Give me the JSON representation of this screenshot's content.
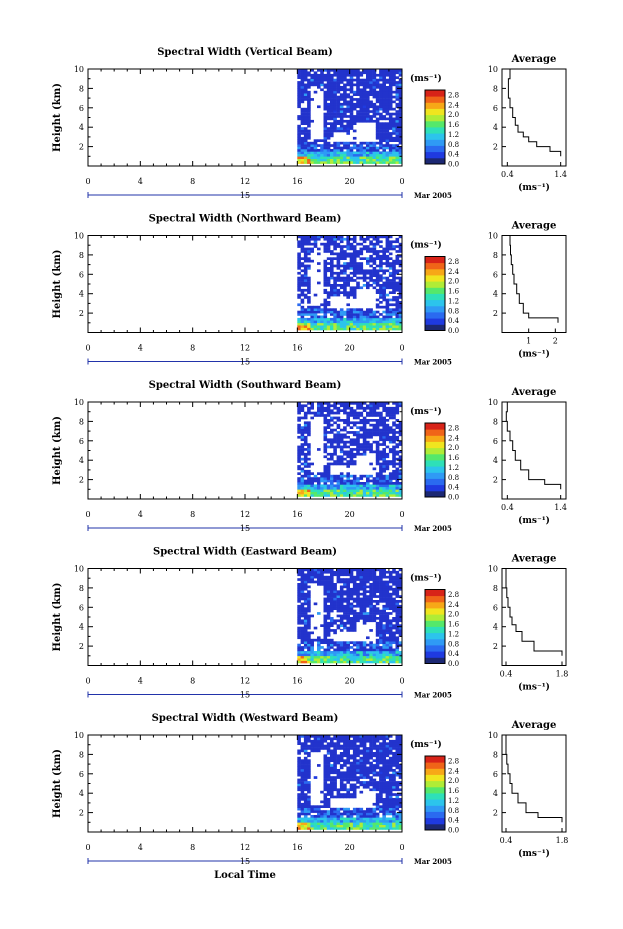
{
  "colors": {
    "background": "#ffffff",
    "axes": "#000000",
    "data_navy": "#2233cc",
    "colormap": [
      "#1c2873",
      "#1f3ae0",
      "#2a6af0",
      "#2f9af5",
      "#2cc4ec",
      "#2ee0b8",
      "#55e86a",
      "#b0ec36",
      "#f0e51f",
      "#f7a817",
      "#f06418",
      "#d82318"
    ]
  },
  "chart_data": [
    {
      "type": "heatmap",
      "title": "Spectral Width (Vertical Beam)",
      "ylabel": "Height (km)",
      "xlim": [
        0,
        24
      ],
      "ylim": [
        0,
        10
      ],
      "xticks": [
        "0",
        "4",
        "8",
        "12",
        "16",
        "20",
        "0"
      ],
      "yticks": [
        "2",
        "4",
        "6",
        "8",
        "10"
      ],
      "day_label": "15",
      "date_label": "Mar 2005",
      "data_time_range": [
        16,
        24
      ],
      "colorbar": {
        "unit": "(ms⁻¹)",
        "range": [
          0,
          3.0
        ],
        "ticks": [
          "2.8",
          "2.4",
          "2.0",
          "1.6",
          "1.2",
          "0.8",
          "0.4",
          "0.0"
        ]
      },
      "average": {
        "title": "Average",
        "xlabel": "(ms⁻¹)",
        "xticks": [
          "0.4",
          "1.4"
        ],
        "xlim": [
          0.3,
          1.5
        ],
        "yticks": [
          "2",
          "4",
          "6",
          "8",
          "10"
        ],
        "profile": [
          [
            0.5,
            10
          ],
          [
            0.45,
            9
          ],
          [
            0.42,
            8
          ],
          [
            0.42,
            7
          ],
          [
            0.45,
            6
          ],
          [
            0.5,
            5
          ],
          [
            0.55,
            4.2
          ],
          [
            0.6,
            3.5
          ],
          [
            0.7,
            3
          ],
          [
            0.8,
            2.5
          ],
          [
            0.95,
            2
          ],
          [
            1.2,
            1.5
          ],
          [
            1.4,
            1
          ]
        ]
      }
    },
    {
      "type": "heatmap",
      "title": "Spectral Width (Northward Beam)",
      "ylabel": "Height (km)",
      "xlim": [
        0,
        24
      ],
      "ylim": [
        0,
        10
      ],
      "xticks": [
        "0",
        "4",
        "8",
        "12",
        "16",
        "20",
        "0"
      ],
      "yticks": [
        "2",
        "4",
        "6",
        "8",
        "10"
      ],
      "day_label": "15",
      "date_label": "Mar 2005",
      "data_time_range": [
        16,
        24
      ],
      "colorbar": {
        "unit": "(ms⁻¹)",
        "range": [
          0,
          3.0
        ],
        "ticks": [
          "2.8",
          "2.4",
          "2.0",
          "1.6",
          "1.2",
          "0.8",
          "0.4",
          "0.0"
        ]
      },
      "average": {
        "title": "Average",
        "xlabel": "(ms⁻¹)",
        "xticks": [
          "1",
          "2"
        ],
        "xlim": [
          0,
          2.4
        ],
        "yticks": [
          "2",
          "4",
          "6",
          "8",
          "10"
        ],
        "profile": [
          [
            0.3,
            10
          ],
          [
            0.3,
            9
          ],
          [
            0.32,
            8
          ],
          [
            0.35,
            7
          ],
          [
            0.4,
            6
          ],
          [
            0.45,
            5
          ],
          [
            0.55,
            4
          ],
          [
            0.65,
            3
          ],
          [
            0.8,
            2
          ],
          [
            1.0,
            1.5
          ],
          [
            2.1,
            1
          ]
        ]
      }
    },
    {
      "type": "heatmap",
      "title": "Spectral Width (Southward Beam)",
      "ylabel": "Height (km)",
      "xlim": [
        0,
        24
      ],
      "ylim": [
        0,
        10
      ],
      "xticks": [
        "0",
        "4",
        "8",
        "12",
        "16",
        "20",
        "0"
      ],
      "yticks": [
        "2",
        "4",
        "6",
        "8",
        "10"
      ],
      "day_label": "15",
      "date_label": "Mar 2005",
      "data_time_range": [
        16,
        24
      ],
      "colorbar": {
        "unit": "(ms⁻¹)",
        "range": [
          0,
          3.0
        ],
        "ticks": [
          "2.8",
          "2.4",
          "2.0",
          "1.6",
          "1.2",
          "0.8",
          "0.4",
          "0.0"
        ]
      },
      "average": {
        "title": "Average",
        "xlabel": "(ms⁻¹)",
        "xticks": [
          "0.4",
          "1.4"
        ],
        "xlim": [
          0.3,
          1.5
        ],
        "yticks": [
          "2",
          "4",
          "6",
          "8",
          "10"
        ],
        "profile": [
          [
            0.42,
            10
          ],
          [
            0.4,
            9
          ],
          [
            0.38,
            8
          ],
          [
            0.4,
            7
          ],
          [
            0.45,
            6
          ],
          [
            0.5,
            5
          ],
          [
            0.55,
            4
          ],
          [
            0.65,
            3
          ],
          [
            0.8,
            2
          ],
          [
            1.1,
            1.5
          ],
          [
            1.4,
            1
          ]
        ]
      }
    },
    {
      "type": "heatmap",
      "title": "Spectral Width (Eastward Beam)",
      "ylabel": "Height (km)",
      "xlim": [
        0,
        24
      ],
      "ylim": [
        0,
        10
      ],
      "xticks": [
        "0",
        "4",
        "8",
        "12",
        "16",
        "20",
        "0"
      ],
      "yticks": [
        "2",
        "4",
        "6",
        "8",
        "10"
      ],
      "day_label": "15",
      "date_label": "Mar 2005",
      "data_time_range": [
        16,
        24
      ],
      "colorbar": {
        "unit": "(ms⁻¹)",
        "range": [
          0,
          3.0
        ],
        "ticks": [
          "2.8",
          "2.4",
          "2.0",
          "1.6",
          "1.2",
          "0.8",
          "0.4",
          "0.0"
        ]
      },
      "average": {
        "title": "Average",
        "xlabel": "(ms⁻¹)",
        "xticks": [
          "0.4",
          "1.8"
        ],
        "xlim": [
          0.3,
          1.9
        ],
        "yticks": [
          "2",
          "4",
          "6",
          "8",
          "10"
        ],
        "profile": [
          [
            0.42,
            10
          ],
          [
            0.4,
            9
          ],
          [
            0.4,
            8
          ],
          [
            0.42,
            7
          ],
          [
            0.45,
            6
          ],
          [
            0.5,
            5
          ],
          [
            0.55,
            4.2
          ],
          [
            0.65,
            3.5
          ],
          [
            0.8,
            2.5
          ],
          [
            1.1,
            1.5
          ],
          [
            1.8,
            1
          ]
        ]
      }
    },
    {
      "type": "heatmap",
      "title": "Spectral Width (Westward Beam)",
      "ylabel": "Height (km)",
      "xlabel": "Local Time",
      "xlim": [
        0,
        24
      ],
      "ylim": [
        0,
        10
      ],
      "xticks": [
        "0",
        "4",
        "8",
        "12",
        "16",
        "20",
        "0"
      ],
      "yticks": [
        "2",
        "4",
        "6",
        "8",
        "10"
      ],
      "day_label": "15",
      "date_label": "Mar 2005",
      "data_time_range": [
        16,
        24
      ],
      "colorbar": {
        "unit": "(ms⁻¹)",
        "range": [
          0,
          3.0
        ],
        "ticks": [
          "2.8",
          "2.4",
          "2.0",
          "1.6",
          "1.2",
          "0.8",
          "0.4",
          "0.0"
        ]
      },
      "average": {
        "title": "Average",
        "xlabel": "(ms⁻¹)",
        "xticks": [
          "0.4",
          "1.8"
        ],
        "xlim": [
          0.3,
          1.9
        ],
        "yticks": [
          "2",
          "4",
          "6",
          "8",
          "10"
        ],
        "profile": [
          [
            0.42,
            10
          ],
          [
            0.4,
            9
          ],
          [
            0.4,
            8
          ],
          [
            0.42,
            7
          ],
          [
            0.45,
            6
          ],
          [
            0.5,
            5
          ],
          [
            0.55,
            4
          ],
          [
            0.7,
            3
          ],
          [
            0.9,
            2
          ],
          [
            1.2,
            1.5
          ],
          [
            1.8,
            1
          ]
        ]
      }
    }
  ]
}
